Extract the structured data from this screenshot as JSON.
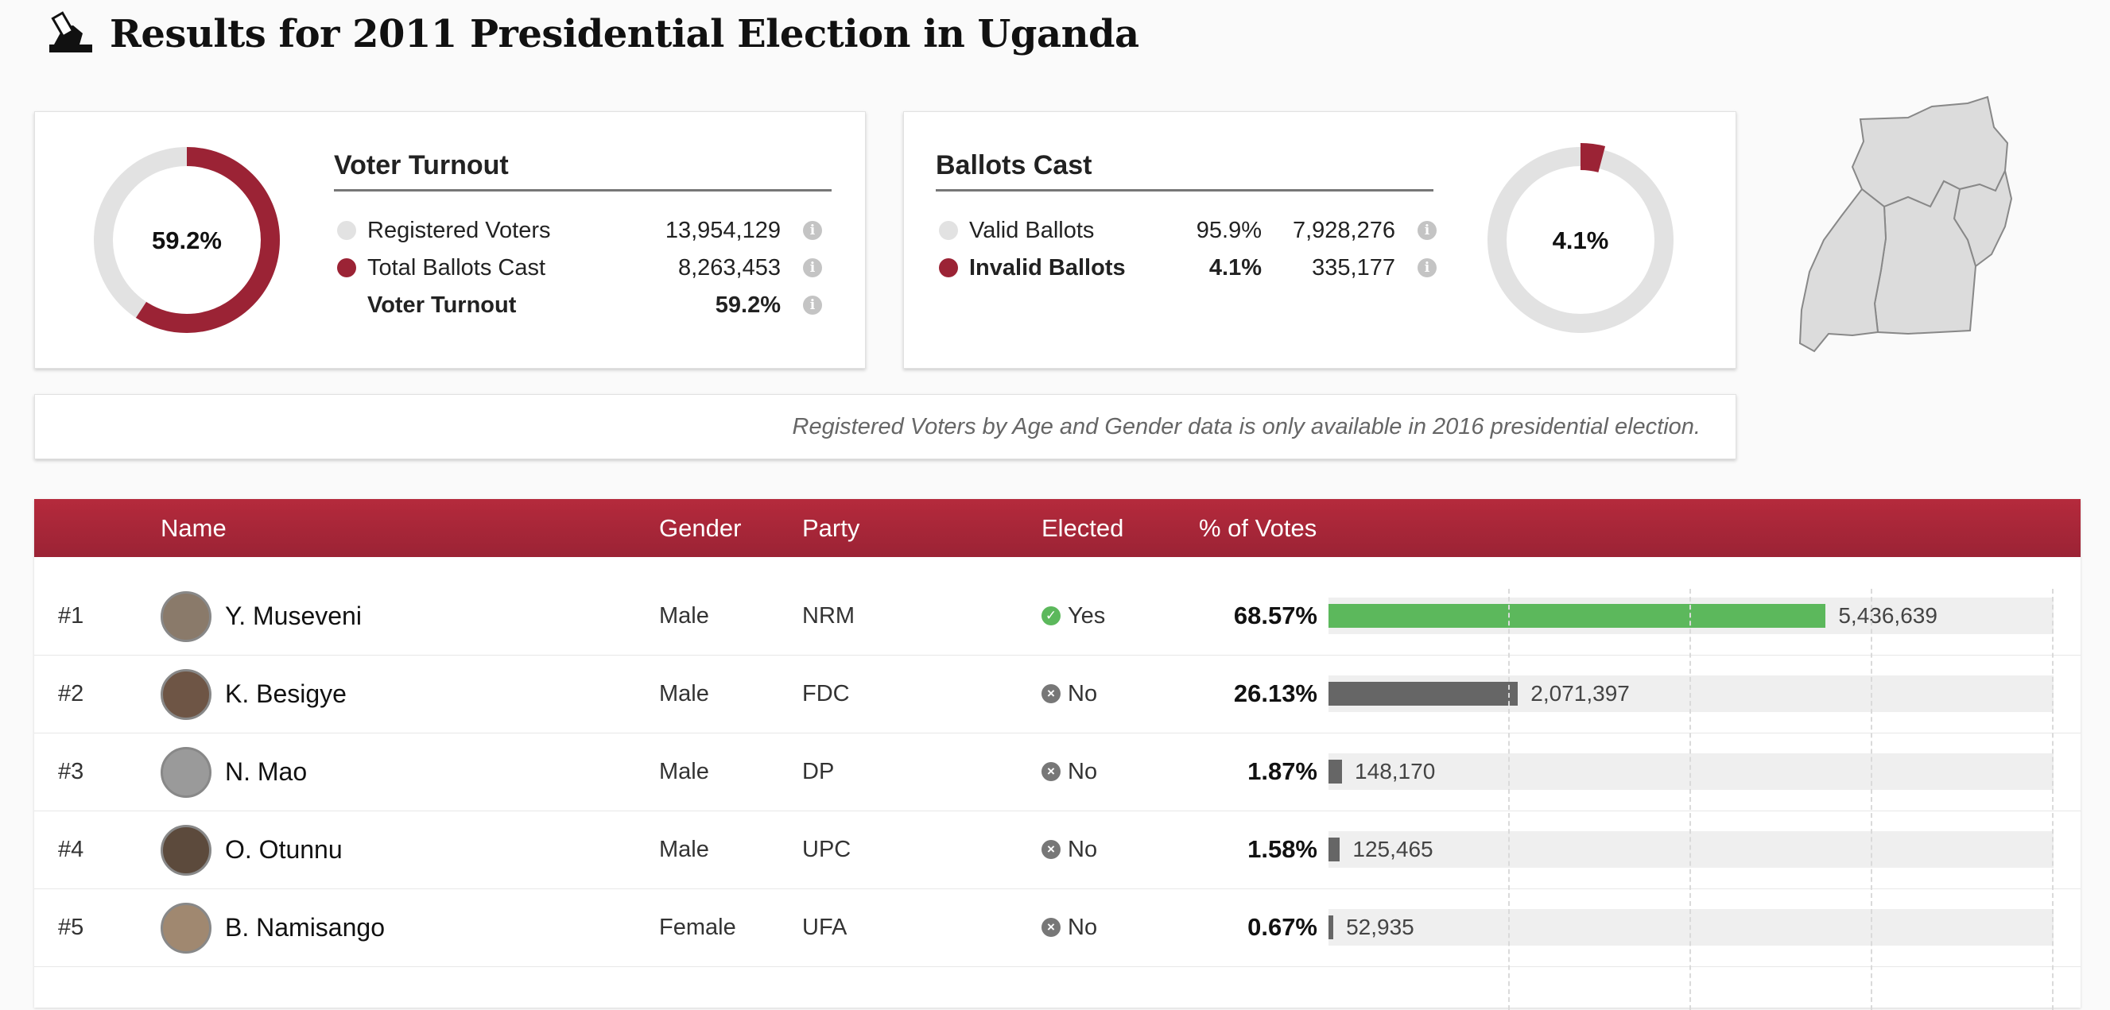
{
  "page": {
    "title": "Results for 2011 Presidential Election in Uganda",
    "icon": "ballot-box-icon"
  },
  "turnout_card": {
    "heading": "Voter Turnout",
    "donut_label": "59.2%",
    "donut_fraction": 0.592,
    "colors": {
      "filled": "#9b2335",
      "track": "#e2e2e2"
    },
    "rows": [
      {
        "label": "Registered Voters",
        "value": "13,954,129",
        "dot": "grey",
        "bold": false
      },
      {
        "label": "Total Ballots Cast",
        "value": "8,263,453",
        "dot": "red",
        "bold": false
      },
      {
        "label": "Voter Turnout",
        "value": "59.2%",
        "dot": "none",
        "bold": true
      }
    ]
  },
  "ballots_card": {
    "heading": "Ballots Cast",
    "donut_label": "4.1%",
    "donut_fraction": 0.041,
    "rows": [
      {
        "label": "Valid Ballots",
        "pct": "95.9%",
        "value": "7,928,276",
        "dot": "grey",
        "bold": false
      },
      {
        "label": "Invalid Ballots",
        "pct": "4.1%",
        "value": "335,177",
        "dot": "red",
        "bold": true
      }
    ]
  },
  "note": "Registered Voters by Age and Gender data is only available in 2016 presidential election.",
  "table": {
    "headers": {
      "name": "Name",
      "gender": "Gender",
      "party": "Party",
      "elected": "Elected",
      "votes": "% of Votes"
    },
    "rows": [
      {
        "rank": "#1",
        "name": "Y. Museveni",
        "gender": "Male",
        "party": "NRM",
        "elected": "Yes",
        "elected_flag": true,
        "pct": "68.57%",
        "pct_value": 68.57,
        "votes": "5,436,639",
        "bar_color": "#5cb85c"
      },
      {
        "rank": "#2",
        "name": "K. Besigye",
        "gender": "Male",
        "party": "FDC",
        "elected": "No",
        "elected_flag": false,
        "pct": "26.13%",
        "pct_value": 26.13,
        "votes": "2,071,397",
        "bar_color": "#666666"
      },
      {
        "rank": "#3",
        "name": "N. Mao",
        "gender": "Male",
        "party": "DP",
        "elected": "No",
        "elected_flag": false,
        "pct": "1.87%",
        "pct_value": 1.87,
        "votes": "148,170",
        "bar_color": "#666666"
      },
      {
        "rank": "#4",
        "name": "O. Otunnu",
        "gender": "Male",
        "party": "UPC",
        "elected": "No",
        "elected_flag": false,
        "pct": "1.58%",
        "pct_value": 1.58,
        "votes": "125,465",
        "bar_color": "#666666"
      },
      {
        "rank": "#5",
        "name": "B. Namisango",
        "gender": "Female",
        "party": "UFA",
        "elected": "No",
        "elected_flag": false,
        "pct": "0.67%",
        "pct_value": 0.67,
        "votes": "52,935",
        "bar_color": "#666666"
      }
    ]
  },
  "bar_axis_max": 100
}
